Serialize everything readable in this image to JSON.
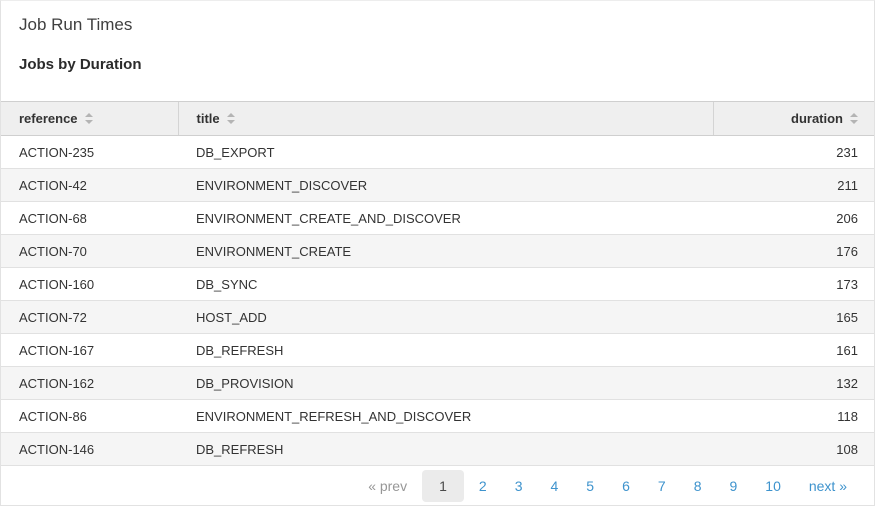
{
  "page": {
    "title": "Job Run Times",
    "section_title": "Jobs by Duration"
  },
  "table": {
    "columns": [
      {
        "key": "reference",
        "label": "reference",
        "align": "left",
        "sortable": true
      },
      {
        "key": "title",
        "label": "title",
        "align": "left",
        "sortable": true
      },
      {
        "key": "duration",
        "label": "duration",
        "align": "right",
        "sortable": true
      }
    ],
    "rows": [
      {
        "reference": "ACTION-235",
        "title": "DB_EXPORT",
        "duration": "231"
      },
      {
        "reference": "ACTION-42",
        "title": "ENVIRONMENT_DISCOVER",
        "duration": "211"
      },
      {
        "reference": "ACTION-68",
        "title": "ENVIRONMENT_CREATE_AND_DISCOVER",
        "duration": "206"
      },
      {
        "reference": "ACTION-70",
        "title": "ENVIRONMENT_CREATE",
        "duration": "176"
      },
      {
        "reference": "ACTION-160",
        "title": "DB_SYNC",
        "duration": "173"
      },
      {
        "reference": "ACTION-72",
        "title": "HOST_ADD",
        "duration": "165"
      },
      {
        "reference": "ACTION-167",
        "title": "DB_REFRESH",
        "duration": "161"
      },
      {
        "reference": "ACTION-162",
        "title": "DB_PROVISION",
        "duration": "132"
      },
      {
        "reference": "ACTION-86",
        "title": "ENVIRONMENT_REFRESH_AND_DISCOVER",
        "duration": "118"
      },
      {
        "reference": "ACTION-146",
        "title": "DB_REFRESH",
        "duration": "108"
      }
    ]
  },
  "pagination": {
    "prev_label": "« prev",
    "next_label": "next »",
    "pages": [
      "1",
      "2",
      "3",
      "4",
      "5",
      "6",
      "7",
      "8",
      "9",
      "10"
    ],
    "current_page": "1"
  },
  "colors": {
    "link_blue": "#3e93cd",
    "header_bg": "#efefef",
    "stripe_bg": "#f5f5f5",
    "muted_text": "#979797"
  }
}
